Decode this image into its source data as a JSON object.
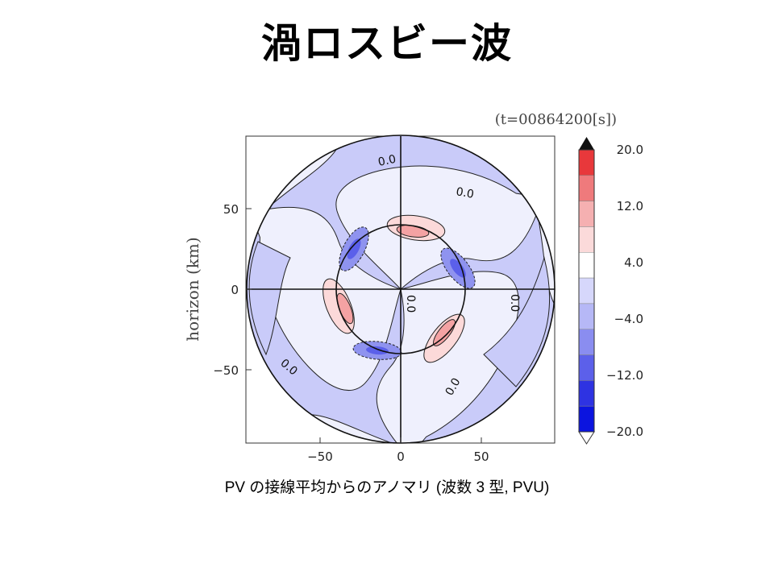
{
  "slide": {
    "title": "渦ロスビー波",
    "caption": "PV の接線平均からのアノマリ (波数 3 型, PVU)"
  },
  "chart_data": {
    "type": "heatmap",
    "time_label": "(t=00864200[s])",
    "ylabel": "horizon (km)",
    "xlabel": "",
    "x_ticks": [
      "−50",
      "0",
      "50"
    ],
    "y_ticks": [
      "50",
      "0",
      "−50"
    ],
    "xlim": [
      -95,
      95
    ],
    "ylim": [
      -95,
      95
    ],
    "contour_labels": [
      "0.0",
      "0.0",
      "0.0",
      "0.0",
      "0.0",
      "0.0"
    ],
    "colorbar": {
      "labels": [
        "20.0",
        "12.0",
        "4.0",
        "−4.0",
        "−12.0",
        "−20.0"
      ],
      "levels": [
        20,
        16,
        12,
        8,
        4,
        0,
        -4,
        -8,
        -12,
        -16,
        -20
      ],
      "colors": [
        "#e8383b",
        "#ef7a7c",
        "#f5b0b1",
        "#fbdada",
        "#ffffff",
        "#d6d7fb",
        "#b6b8f6",
        "#8a8df0",
        "#5c60ea",
        "#2e33e2",
        "#0b14df"
      ]
    },
    "wavenumber": 3,
    "units": "PVU"
  },
  "colors": {
    "weak_negative": "#c9cbf9",
    "background_inside": "#eff0fd",
    "positive_light": "#fcd9d9",
    "positive_mid": "#f4a2a3",
    "negative_mid": "#8f93ef",
    "negative_strong": "#5b60ea"
  }
}
